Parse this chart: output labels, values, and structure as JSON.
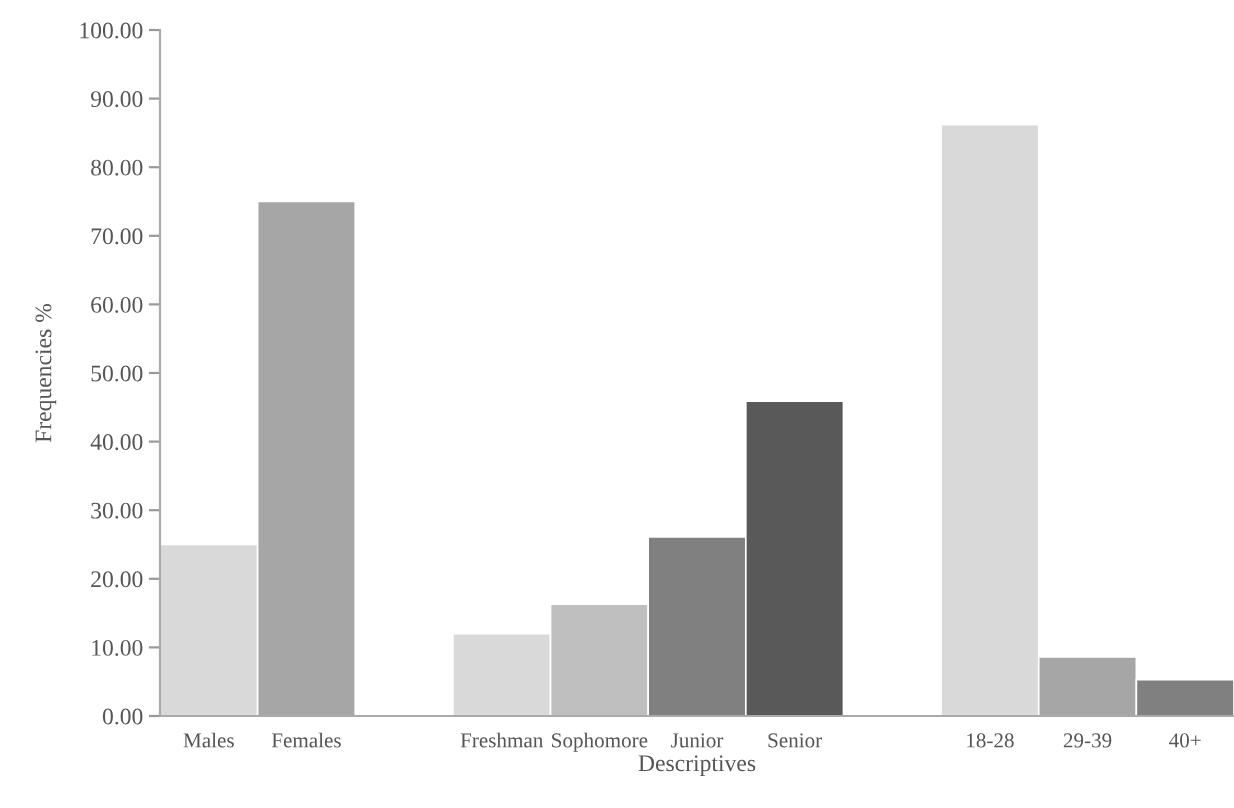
{
  "chart_data": {
    "type": "bar",
    "xlabel": "Descriptives",
    "ylabel": "Frequencies %",
    "categories": [
      "Males",
      "Females",
      null,
      "Freshman",
      "Sophomore",
      "Junior",
      "Senior",
      null,
      "18-28",
      "29-39",
      "40+"
    ],
    "values": [
      25,
      75,
      null,
      12,
      16.3,
      26.1,
      45.9,
      null,
      86.2,
      8.6,
      5.3
    ],
    "colors": [
      "#d9d9d9",
      "#a6a6a6",
      null,
      "#d9d9d9",
      "#bfbfbf",
      "#808080",
      "#595959",
      null,
      "#d9d9d9",
      "#a6a6a6",
      "#808080"
    ],
    "ylim": [
      0,
      100
    ],
    "yticks": [
      {
        "value": 0,
        "label": "0.00"
      },
      {
        "value": 10,
        "label": "10.00"
      },
      {
        "value": 20,
        "label": "20.00"
      },
      {
        "value": 30,
        "label": "30.00"
      },
      {
        "value": 40,
        "label": "40.00"
      },
      {
        "value": 50,
        "label": "50.00"
      },
      {
        "value": 60,
        "label": "60.00"
      },
      {
        "value": 70,
        "label": "70.00"
      },
      {
        "value": 80,
        "label": "80.00"
      },
      {
        "value": 90,
        "label": "90.00"
      },
      {
        "value": 100,
        "label": "100.00"
      }
    ],
    "grid": false,
    "legend": false
  }
}
